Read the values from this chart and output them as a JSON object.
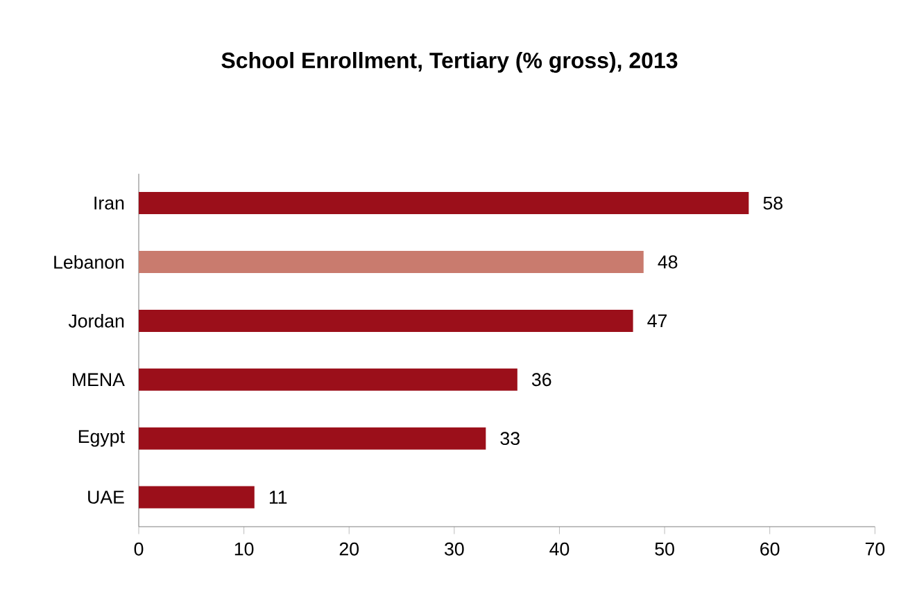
{
  "chart_data": {
    "type": "bar",
    "orientation": "horizontal",
    "title": "School Enrollment, Tertiary (% gross), 2013",
    "categories": [
      "Iran",
      "Lebanon",
      "Jordan",
      "MENA",
      "Egypt",
      "UAE"
    ],
    "values": [
      58,
      48,
      47,
      36,
      33,
      11
    ],
    "colors": [
      "#9b0f1a",
      "#c97b6e",
      "#9b0f1a",
      "#9b0f1a",
      "#9b0f1a",
      "#9b0f1a"
    ],
    "xlim": [
      0,
      70
    ],
    "xticks": [
      0,
      10,
      20,
      30,
      40,
      50,
      60,
      70
    ],
    "data_labels": true
  }
}
